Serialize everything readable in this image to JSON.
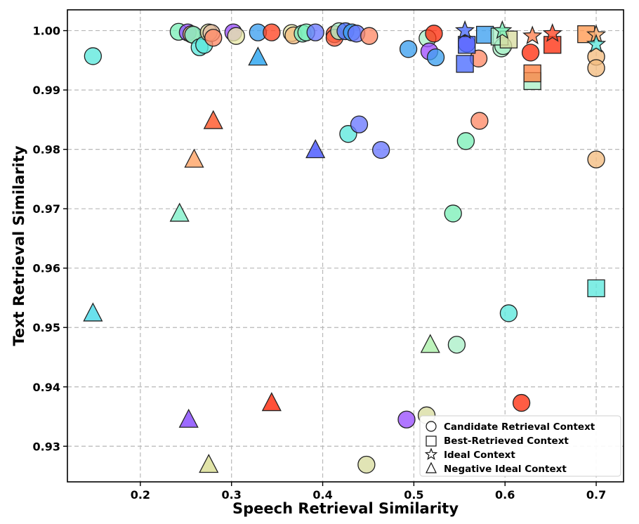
{
  "chart_data": {
    "type": "scatter",
    "title": "",
    "xlabel": "Speech Retrieval Similarity",
    "ylabel": "Text Retrieval Similarity",
    "xlim": [
      0.12,
      0.73
    ],
    "ylim": [
      0.924,
      1.0035
    ],
    "xticks": [
      0.2,
      0.3,
      0.4,
      0.5,
      0.6,
      0.7
    ],
    "xtick_labels": [
      "0.2",
      "0.3",
      "0.4",
      "0.5",
      "0.6",
      "0.7"
    ],
    "yticks": [
      0.93,
      0.94,
      0.95,
      0.96,
      0.97,
      0.98,
      0.99,
      1.0
    ],
    "ytick_labels": [
      "0.93",
      "0.94",
      "0.95",
      "0.96",
      "0.97",
      "0.98",
      "0.99",
      "1.00"
    ],
    "grid": true,
    "legend_position": "bottom-right",
    "legend": [
      {
        "shape": "circle",
        "label": "Candidate Retrieval Context"
      },
      {
        "shape": "square",
        "label": "Best-Retrieved Context"
      },
      {
        "shape": "star",
        "label": "Ideal Context"
      },
      {
        "shape": "triangle",
        "label": "Negative Ideal Context"
      }
    ],
    "series": [
      {
        "name": "Candidate Retrieval Context",
        "marker": "circle",
        "points": [
          {
            "x": 0.148,
            "y": 0.9957,
            "color": "#5ce8dc"
          },
          {
            "x": 0.242,
            "y": 0.9998,
            "color": "#7cf0b8"
          },
          {
            "x": 0.252,
            "y": 0.9997,
            "color": "#9a50ff"
          },
          {
            "x": 0.256,
            "y": 0.9994,
            "color": "#f4bc80"
          },
          {
            "x": 0.258,
            "y": 0.9993,
            "color": "#7cf0c8"
          },
          {
            "x": 0.265,
            "y": 0.9972,
            "color": "#5ce8dc"
          },
          {
            "x": 0.27,
            "y": 0.9976,
            "color": "#5ce8dc"
          },
          {
            "x": 0.275,
            "y": 0.9997,
            "color": "#d8dca0"
          },
          {
            "x": 0.278,
            "y": 0.9996,
            "color": "#e0b8a0"
          },
          {
            "x": 0.28,
            "y": 0.9988,
            "color": "#ff8a68"
          },
          {
            "x": 0.302,
            "y": 0.9997,
            "color": "#9a50ff"
          },
          {
            "x": 0.305,
            "y": 0.9991,
            "color": "#e8e8a8"
          },
          {
            "x": 0.329,
            "y": 0.9997,
            "color": "#3ea0f0"
          },
          {
            "x": 0.344,
            "y": 0.9997,
            "color": "#ff4422"
          },
          {
            "x": 0.366,
            "y": 0.9996,
            "color": "#e8e8a8"
          },
          {
            "x": 0.368,
            "y": 0.9992,
            "color": "#f4bc80"
          },
          {
            "x": 0.378,
            "y": 0.9995,
            "color": "#7cf0c8"
          },
          {
            "x": 0.382,
            "y": 0.9997,
            "color": "#7cf0b8"
          },
          {
            "x": 0.392,
            "y": 0.9997,
            "color": "#6a78ff"
          },
          {
            "x": 0.413,
            "y": 0.9994,
            "color": "#ff6040"
          },
          {
            "x": 0.413,
            "y": 0.9988,
            "color": "#ff6040"
          },
          {
            "x": 0.418,
            "y": 0.9999,
            "color": "#aaf0c8"
          },
          {
            "x": 0.425,
            "y": 0.9999,
            "color": "#4a6cff"
          },
          {
            "x": 0.432,
            "y": 0.9997,
            "color": "#3ea0f0"
          },
          {
            "x": 0.437,
            "y": 0.9995,
            "color": "#6a78ff"
          },
          {
            "x": 0.451,
            "y": 0.9991,
            "color": "#ff8a68"
          },
          {
            "x": 0.428,
            "y": 0.9826,
            "color": "#5ce8dc"
          },
          {
            "x": 0.44,
            "y": 0.9842,
            "color": "#6a78ff"
          },
          {
            "x": 0.464,
            "y": 0.9799,
            "color": "#6a78ff"
          },
          {
            "x": 0.494,
            "y": 0.9969,
            "color": "#3ea0f0"
          },
          {
            "x": 0.515,
            "y": 0.9987,
            "color": "#aaf0c8"
          },
          {
            "x": 0.517,
            "y": 0.9965,
            "color": "#a050ff"
          },
          {
            "x": 0.522,
            "y": 0.9995,
            "color": "#ff3010"
          },
          {
            "x": 0.524,
            "y": 0.9955,
            "color": "#3ea0f0"
          },
          {
            "x": 0.543,
            "y": 0.9692,
            "color": "#7cf0b8"
          },
          {
            "x": 0.547,
            "y": 0.9471,
            "color": "#aaf0c8"
          },
          {
            "x": 0.557,
            "y": 0.9814,
            "color": "#7cf0b8"
          },
          {
            "x": 0.558,
            "y": 0.9978,
            "color": "#9a50ff"
          },
          {
            "x": 0.571,
            "y": 0.9953,
            "color": "#ff8a68"
          },
          {
            "x": 0.572,
            "y": 0.9848,
            "color": "#ff8a68"
          },
          {
            "x": 0.596,
            "y": 0.997,
            "color": "#aaf0c8"
          },
          {
            "x": 0.598,
            "y": 0.9974,
            "color": "#aaf0c8"
          },
          {
            "x": 0.604,
            "y": 0.9524,
            "color": "#5ce8dc"
          },
          {
            "x": 0.618,
            "y": 0.9373,
            "color": "#ff3010"
          },
          {
            "x": 0.628,
            "y": 0.9963,
            "color": "#ff3010"
          },
          {
            "x": 0.7,
            "y": 0.9956,
            "color": "#f4bc80"
          },
          {
            "x": 0.7,
            "y": 0.9937,
            "color": "#f4bc80"
          },
          {
            "x": 0.7,
            "y": 0.9783,
            "color": "#f4bc80"
          },
          {
            "x": 0.492,
            "y": 0.9345,
            "color": "#9a50ff"
          },
          {
            "x": 0.514,
            "y": 0.9352,
            "color": "#d8dca0"
          },
          {
            "x": 0.448,
            "y": 0.9269,
            "color": "#d8dca0"
          }
        ]
      },
      {
        "name": "Best-Retrieved Context",
        "marker": "square",
        "points": [
          {
            "x": 0.556,
            "y": 0.9944,
            "color": "#4a6cff"
          },
          {
            "x": 0.558,
            "y": 0.9976,
            "color": "#4a6cff"
          },
          {
            "x": 0.578,
            "y": 0.9993,
            "color": "#3ea0f0"
          },
          {
            "x": 0.594,
            "y": 0.999,
            "color": "#aaf0c8"
          },
          {
            "x": 0.604,
            "y": 0.9985,
            "color": "#d8dca0"
          },
          {
            "x": 0.63,
            "y": 0.9915,
            "color": "#aaf0c8"
          },
          {
            "x": 0.63,
            "y": 0.9928,
            "color": "#ff8040"
          },
          {
            "x": 0.652,
            "y": 0.9976,
            "color": "#ff3010"
          },
          {
            "x": 0.689,
            "y": 0.9994,
            "color": "#ff9850"
          },
          {
            "x": 0.7,
            "y": 0.9566,
            "color": "#5ce8dc"
          }
        ]
      },
      {
        "name": "Ideal Context",
        "marker": "star",
        "points": [
          {
            "x": 0.556,
            "y": 1.0,
            "color": "#4a6cff"
          },
          {
            "x": 0.597,
            "y": 1.0,
            "color": "#7cf0b8"
          },
          {
            "x": 0.63,
            "y": 0.9991,
            "color": "#ff8050"
          },
          {
            "x": 0.652,
            "y": 0.9995,
            "color": "#ff4422"
          },
          {
            "x": 0.7,
            "y": 0.9993,
            "color": "#ffb070"
          },
          {
            "x": 0.7,
            "y": 0.9977,
            "color": "#5ce8dc"
          }
        ]
      },
      {
        "name": "Negative Ideal Context",
        "marker": "triangle",
        "points": [
          {
            "x": 0.148,
            "y": 0.9524,
            "color": "#40d8e8"
          },
          {
            "x": 0.243,
            "y": 0.9692,
            "color": "#7cf0c8"
          },
          {
            "x": 0.253,
            "y": 0.9345,
            "color": "#8040ff"
          },
          {
            "x": 0.259,
            "y": 0.9783,
            "color": "#ffa060"
          },
          {
            "x": 0.275,
            "y": 0.9269,
            "color": "#d8dc90"
          },
          {
            "x": 0.28,
            "y": 0.9848,
            "color": "#ff5020"
          },
          {
            "x": 0.329,
            "y": 0.9955,
            "color": "#20a0f0"
          },
          {
            "x": 0.344,
            "y": 0.9373,
            "color": "#ff2000"
          },
          {
            "x": 0.392,
            "y": 0.9799,
            "color": "#4050ff"
          },
          {
            "x": 0.518,
            "y": 0.9471,
            "color": "#aaf0a8"
          }
        ]
      }
    ]
  }
}
